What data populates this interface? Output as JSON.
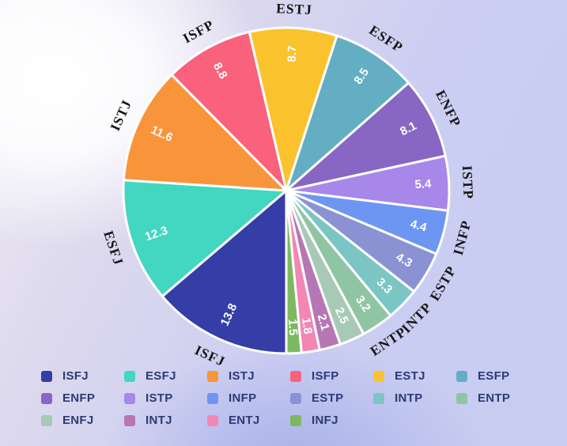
{
  "chart_data": {
    "type": "pie",
    "title": "",
    "series": [
      {
        "name": "ISFJ",
        "value": 13.8,
        "color": "#343ea6",
        "outer_label": true
      },
      {
        "name": "ESFJ",
        "value": 12.3,
        "color": "#43d6c1",
        "outer_label": true
      },
      {
        "name": "ISTJ",
        "value": 11.6,
        "color": "#f8953b",
        "outer_label": true
      },
      {
        "name": "ISFP",
        "value": 8.8,
        "color": "#f9617d",
        "outer_label": true
      },
      {
        "name": "ESTJ",
        "value": 8.7,
        "color": "#fac32e",
        "outer_label": true
      },
      {
        "name": "ESFP",
        "value": 8.5,
        "color": "#64aec4",
        "outer_label": true
      },
      {
        "name": "ENFP",
        "value": 8.1,
        "color": "#8767c3",
        "outer_label": true
      },
      {
        "name": "ISTP",
        "value": 5.4,
        "color": "#a787e9",
        "outer_label": true
      },
      {
        "name": "INFP",
        "value": 4.4,
        "color": "#6c96f2",
        "outer_label": true
      },
      {
        "name": "ESTP",
        "value": 4.3,
        "color": "#8b92d4",
        "outer_label": true
      },
      {
        "name": "INTP",
        "value": 3.3,
        "color": "#7bc6c5",
        "outer_label": true
      },
      {
        "name": "ENTP",
        "value": 3.2,
        "color": "#90c5a4",
        "outer_label": true
      },
      {
        "name": "ENFJ",
        "value": 2.5,
        "color": "#a8c9b6",
        "outer_label": false
      },
      {
        "name": "INTJ",
        "value": 2.1,
        "color": "#b677b4",
        "outer_label": false
      },
      {
        "name": "ENTJ",
        "value": 1.8,
        "color": "#f287b5",
        "outer_label": false
      },
      {
        "name": "INFJ",
        "value": 1.5,
        "color": "#7cb862",
        "outer_label": false
      }
    ],
    "start_angle_deg": 180,
    "clockwise": true,
    "label_layout": {
      "outer_rotation": "tangential",
      "value_rotation": "radial",
      "outer_color": "#161616",
      "value_color": "#ffffff",
      "slice_border_color": "#ffffff"
    },
    "legend_position": "bottom"
  },
  "legend": {
    "columns": 6,
    "order": [
      "ISFJ",
      "ESFJ",
      "ISTJ",
      "ISFP",
      "ESTJ",
      "ESFP",
      "ENFP",
      "ISTP",
      "INFP",
      "ESTP",
      "INTP",
      "ENTP",
      "ENFJ",
      "INTJ",
      "ENTJ",
      "INFJ"
    ]
  }
}
